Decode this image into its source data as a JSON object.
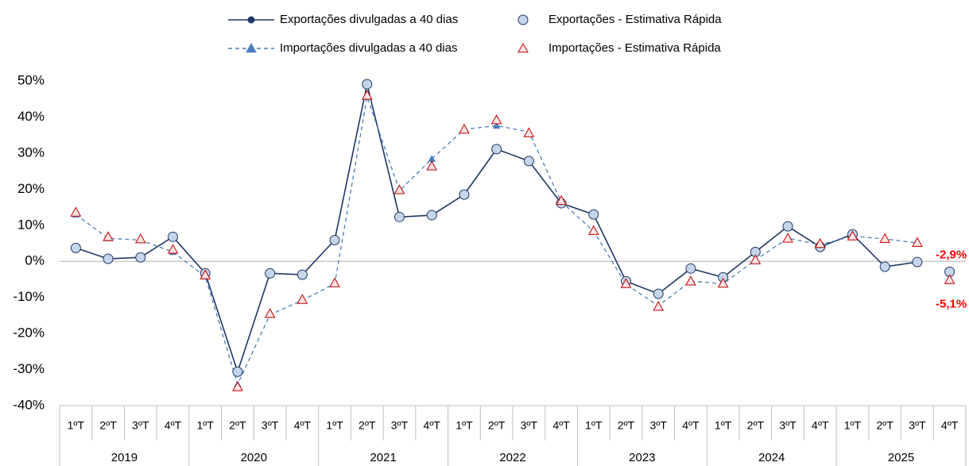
{
  "chart_data": {
    "type": "line",
    "categories": [
      "1ºT",
      "2ºT",
      "3ºT",
      "4ºT",
      "1ºT",
      "2ºT",
      "3ºT",
      "4ºT",
      "1ºT",
      "2ºT",
      "3ºT",
      "4ºT",
      "1ºT",
      "2ºT",
      "3ºT",
      "4ºT",
      "1ºT",
      "2ºT",
      "3ºT",
      "4ºT",
      "1ºT",
      "2ºT",
      "3ºT",
      "4ºT",
      "1ºT",
      "2ºT",
      "3ºT",
      "4ºT"
    ],
    "category_groups": [
      "2019",
      "2020",
      "2021",
      "2022",
      "2023",
      "2024",
      "2025"
    ],
    "series": [
      {
        "name": "Exportações divulgadas a 40 dias",
        "color": "#1f3864",
        "line": "solid",
        "marker": "circle",
        "marker_fill": "#1f3864",
        "values": [
          3.7,
          0.7,
          1.1,
          6.8,
          -3.3,
          -30.6,
          -3.3,
          -3.7,
          5.9,
          49.1,
          12.3,
          12.8,
          18.5,
          31.1,
          27.8,
          16.1,
          13.0,
          -5.5,
          -9.0,
          -2.0,
          -4.4,
          2.6,
          9.7,
          4.0,
          7.5,
          -1.5,
          -0.2,
          null
        ]
      },
      {
        "name": "Exportações - Estimativa Rápida",
        "color": "#1f3864",
        "line": "none",
        "marker": "circle",
        "marker_fill": "#c5d5ea",
        "values": [
          3.7,
          0.7,
          1.1,
          6.8,
          -3.3,
          -30.6,
          -3.3,
          -3.7,
          5.9,
          49.1,
          12.3,
          12.8,
          18.5,
          31.1,
          27.8,
          16.1,
          13.0,
          -5.5,
          -9.0,
          -2.0,
          -4.4,
          2.6,
          9.7,
          4.0,
          7.5,
          -1.5,
          -0.2,
          -2.9
        ],
        "value_labels": [
          null,
          null,
          null,
          null,
          null,
          null,
          null,
          null,
          null,
          null,
          null,
          null,
          null,
          null,
          null,
          null,
          null,
          null,
          null,
          null,
          null,
          null,
          null,
          null,
          null,
          null,
          null,
          "-2,9%"
        ]
      },
      {
        "name": "Importações divulgadas a 40 dias",
        "color": "#4a7ebb",
        "line": "dashed",
        "marker": "triangle",
        "marker_fill": "#4a7ebb",
        "values": [
          13.0,
          6.4,
          5.9,
          2.6,
          -4.2,
          -34.1,
          -14.8,
          -10.8,
          -6.2,
          45.6,
          19.6,
          28.4,
          36.6,
          37.6,
          35.9,
          16.5,
          8.4,
          -6.4,
          -12.3,
          -5.5,
          -6.2,
          0.4,
          6.4,
          4.6,
          7.0,
          6.2,
          5.1,
          null
        ]
      },
      {
        "name": "Importações - Estimativa Rápida",
        "color": "#c00000",
        "line": "none",
        "marker": "triangle",
        "marker_fill": "#fbe4e4",
        "values": [
          13.6,
          6.8,
          6.2,
          3.3,
          -3.8,
          -34.8,
          -14.5,
          -10.6,
          -6.0,
          46.0,
          19.8,
          26.4,
          36.6,
          39.2,
          35.6,
          16.8,
          8.5,
          -6.2,
          -12.5,
          -5.5,
          -6.1,
          0.4,
          6.4,
          4.9,
          7.0,
          6.3,
          5.2,
          -5.1
        ],
        "value_labels": [
          null,
          null,
          null,
          null,
          null,
          null,
          null,
          null,
          null,
          null,
          null,
          null,
          null,
          null,
          null,
          null,
          null,
          null,
          null,
          null,
          null,
          null,
          null,
          null,
          null,
          null,
          null,
          "-5,1%"
        ]
      }
    ],
    "value_label_color": "#ff0000",
    "ylim": [
      -40,
      50
    ],
    "yticks": [
      {
        "value": -40,
        "label": "-40%"
      },
      {
        "value": -30,
        "label": "-30%"
      },
      {
        "value": -20,
        "label": "-20%"
      },
      {
        "value": -10,
        "label": "-10%"
      },
      {
        "value": 0,
        "label": "0%"
      },
      {
        "value": 10,
        "label": "10%"
      },
      {
        "value": 20,
        "label": "20%"
      },
      {
        "value": 30,
        "label": "30%"
      },
      {
        "value": 40,
        "label": "40%"
      },
      {
        "value": 50,
        "label": "50%"
      }
    ],
    "grid": false,
    "zero_line": true,
    "legend": "top"
  }
}
